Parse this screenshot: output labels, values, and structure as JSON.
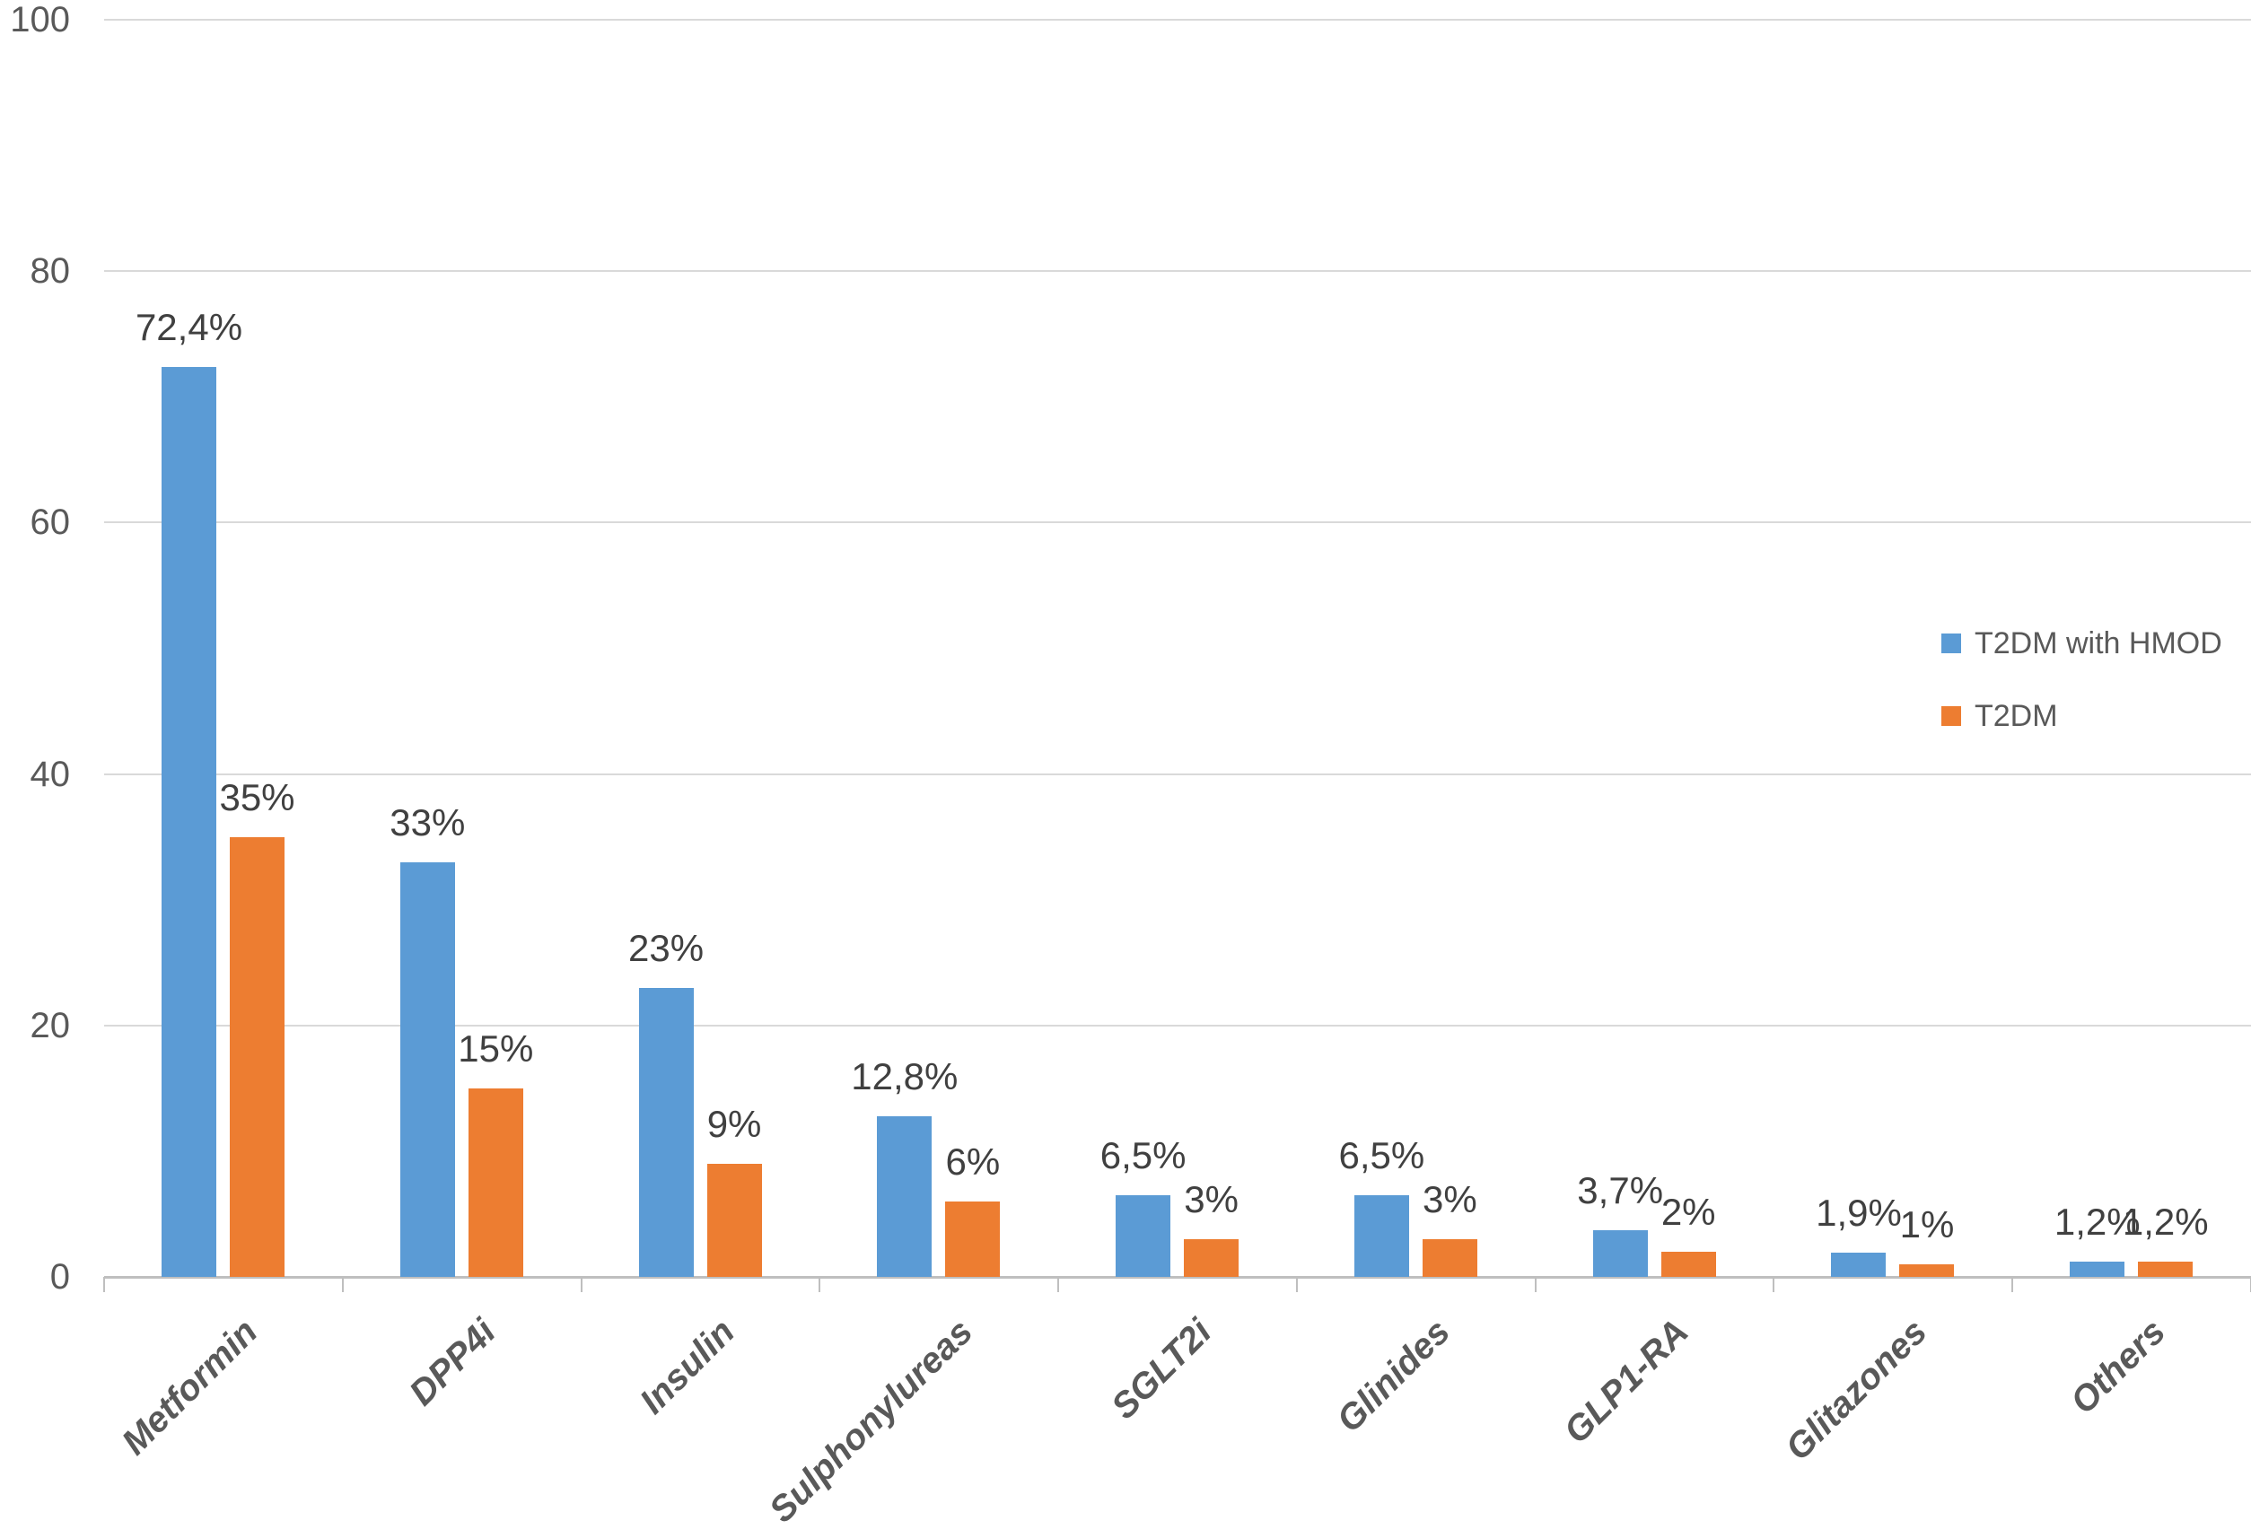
{
  "chart_data": {
    "type": "bar",
    "title": "",
    "categories": [
      "Metformin",
      "DPP4i",
      "Insulin",
      "Sulphonylureas",
      "SGLT2i",
      "Glinides",
      "GLP1-RA",
      "Glitazones",
      "Others"
    ],
    "series": [
      {
        "name": "T2DM with HMOD",
        "color": "#5B9BD5",
        "values": [
          72.4,
          33,
          23,
          12.8,
          6.5,
          6.5,
          3.7,
          1.9,
          1.2
        ],
        "labels": [
          "72,4%",
          "33%",
          "23%",
          "12,8%",
          "6,5%",
          "6,5%",
          "3,7%",
          "1,9%",
          "1,2%"
        ]
      },
      {
        "name": "T2DM",
        "color": "#ED7D31",
        "values": [
          35,
          15,
          9,
          6,
          3,
          3,
          2,
          1,
          1.2
        ],
        "labels": [
          "35%",
          "15%",
          "9%",
          "6%",
          "3%",
          "3%",
          "2%",
          "1%",
          "1,2%"
        ]
      }
    ],
    "yaxis": {
      "min": 0,
      "max": 100,
      "ticks": [
        {
          "value": 0,
          "label": "0"
        },
        {
          "value": 20,
          "label": "20"
        },
        {
          "value": 40,
          "label": "40"
        },
        {
          "value": 60,
          "label": "60"
        },
        {
          "value": 80,
          "label": "80"
        },
        {
          "value": 100,
          "label": "100"
        }
      ]
    },
    "grid": true,
    "legend_position": "right",
    "colors": {
      "gridline": "#D9D9D9",
      "axis": "#BFBFBF",
      "tick_text": "#595959",
      "data_label_text": "#404040"
    }
  }
}
